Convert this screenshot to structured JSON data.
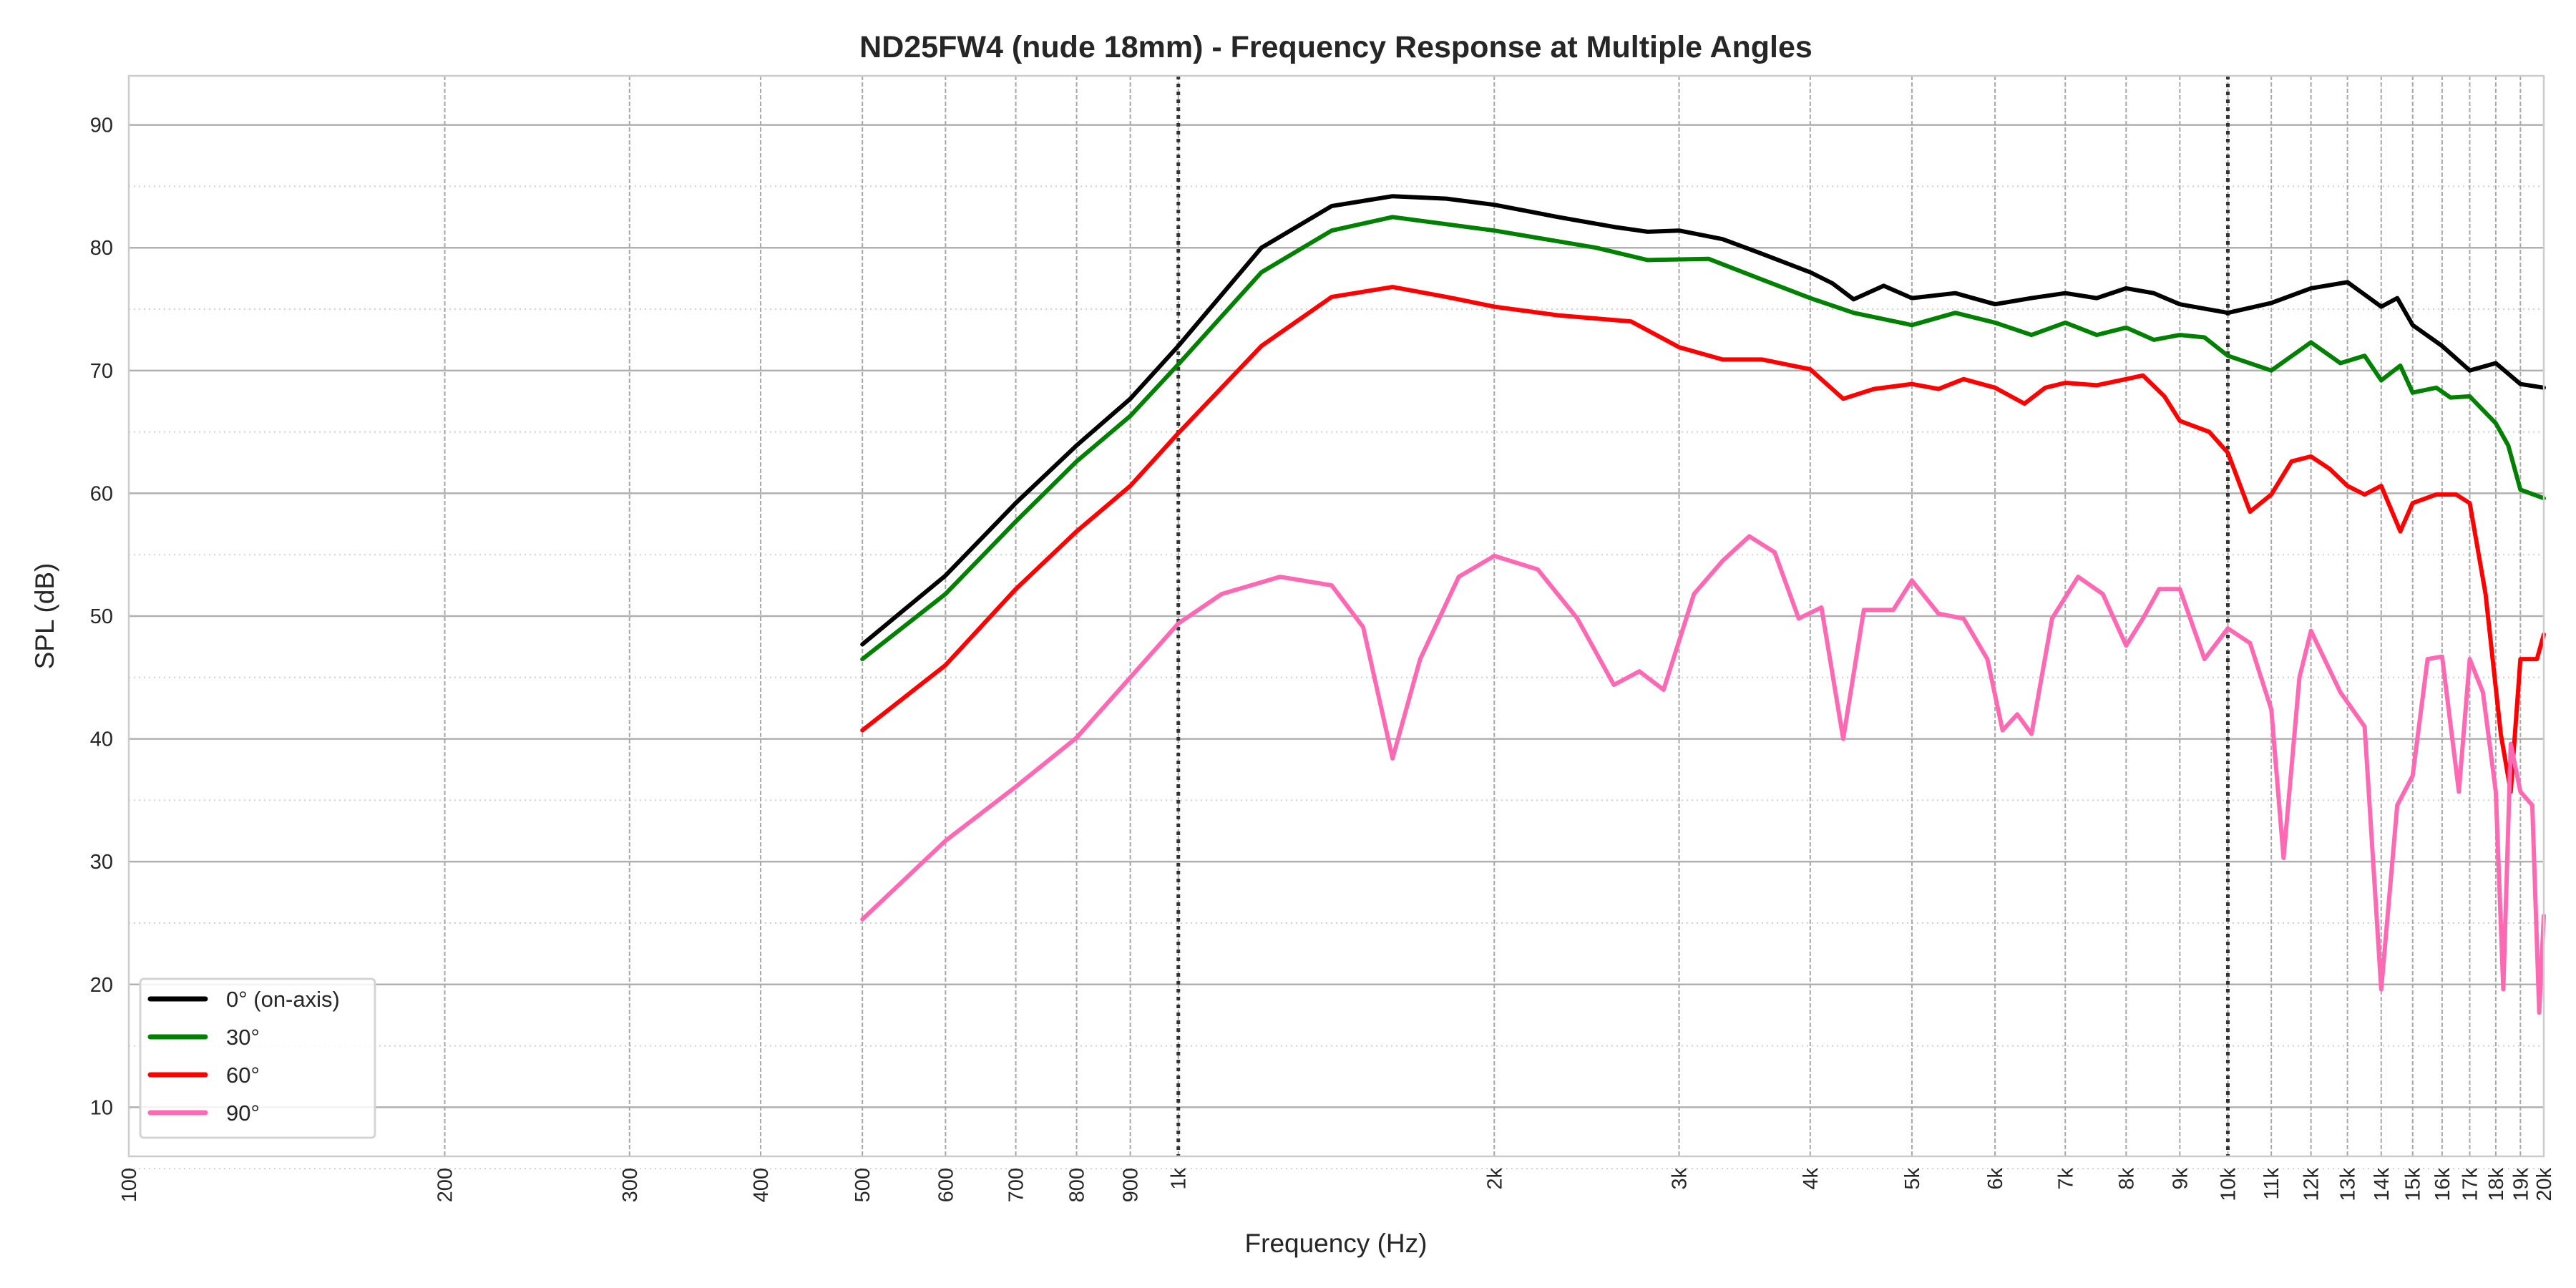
{
  "chart_data": {
    "type": "line",
    "title": "ND25FW4 (nude 18mm) - Frequency Response at Multiple Angles",
    "xlabel": "Frequency (Hz)",
    "ylabel": "SPL (dB)",
    "xscale": "log",
    "xlim": [
      100,
      20000
    ],
    "ylim": [
      6,
      94
    ],
    "grid": true,
    "legend_position": "bottom-left",
    "yticks": [
      10,
      20,
      30,
      40,
      50,
      60,
      70,
      80,
      90
    ],
    "xticks": [
      {
        "v": 100,
        "label": "100"
      },
      {
        "v": 200,
        "label": "200"
      },
      {
        "v": 300,
        "label": "300"
      },
      {
        "v": 400,
        "label": "400"
      },
      {
        "v": 500,
        "label": "500"
      },
      {
        "v": 600,
        "label": "600"
      },
      {
        "v": 700,
        "label": "700"
      },
      {
        "v": 800,
        "label": "800"
      },
      {
        "v": 900,
        "label": "900"
      },
      {
        "v": 1000,
        "label": "1k"
      },
      {
        "v": 2000,
        "label": "2k"
      },
      {
        "v": 3000,
        "label": "3k"
      },
      {
        "v": 4000,
        "label": "4k"
      },
      {
        "v": 5000,
        "label": "5k"
      },
      {
        "v": 6000,
        "label": "6k"
      },
      {
        "v": 7000,
        "label": "7k"
      },
      {
        "v": 8000,
        "label": "8k"
      },
      {
        "v": 9000,
        "label": "9k"
      },
      {
        "v": 10000,
        "label": "10k"
      },
      {
        "v": 11000,
        "label": "11k"
      },
      {
        "v": 12000,
        "label": "12k"
      },
      {
        "v": 13000,
        "label": "13k"
      },
      {
        "v": 14000,
        "label": "14k"
      },
      {
        "v": 15000,
        "label": "15k"
      },
      {
        "v": 16000,
        "label": "16k"
      },
      {
        "v": 17000,
        "label": "17k"
      },
      {
        "v": 18000,
        "label": "18k"
      },
      {
        "v": 19000,
        "label": "19k"
      },
      {
        "v": 20000,
        "label": "20k"
      }
    ],
    "reference_lines_hz": [
      1000,
      10000
    ],
    "series": [
      {
        "name": "0° (on-axis)",
        "color": "#000000",
        "x": [
          500,
          600,
          700,
          800,
          900,
          1000,
          1200,
          1400,
          1600,
          1800,
          2000,
          2300,
          2600,
          2800,
          3000,
          3300,
          3600,
          4000,
          4200,
          4400,
          4700,
          5000,
          5500,
          6000,
          6500,
          7000,
          7500,
          8000,
          8500,
          9000,
          10000,
          11000,
          12000,
          13000,
          14000,
          14500,
          15000,
          16000,
          17000,
          18000,
          19000,
          20000
        ],
        "y": [
          47.7,
          53.3,
          59.2,
          63.9,
          67.7,
          72,
          80,
          83.4,
          84.2,
          84,
          83.5,
          82.5,
          81.7,
          81.3,
          81.4,
          80.7,
          79.5,
          78,
          77.1,
          75.8,
          76.9,
          75.9,
          76.3,
          75.4,
          75.9,
          76.3,
          75.9,
          76.7,
          76.3,
          75.4,
          74.7,
          75.5,
          76.7,
          77.2,
          75.2,
          75.9,
          73.7,
          72,
          70,
          70.6,
          68.9,
          68.6
        ]
      },
      {
        "name": "30°",
        "color": "#008000",
        "x": [
          500,
          600,
          700,
          800,
          900,
          1000,
          1200,
          1400,
          1600,
          2000,
          2500,
          2800,
          3200,
          3600,
          4000,
          4400,
          5000,
          5500,
          6000,
          6500,
          7000,
          7500,
          8000,
          8500,
          9000,
          9500,
          10000,
          11000,
          12000,
          12800,
          13500,
          14000,
          14600,
          15000,
          15800,
          16300,
          17000,
          18000,
          18500,
          19000,
          20000
        ],
        "y": [
          46.5,
          51.8,
          57.7,
          62.6,
          66.3,
          70.5,
          78,
          81.4,
          82.5,
          81.4,
          80,
          79,
          79.1,
          77.4,
          75.9,
          74.7,
          73.7,
          74.7,
          73.9,
          72.9,
          73.9,
          72.9,
          73.5,
          72.5,
          72.9,
          72.7,
          71.2,
          70,
          72.3,
          70.6,
          71.2,
          69.2,
          70.4,
          68.2,
          68.6,
          67.8,
          67.9,
          65.7,
          63.9,
          60.3,
          59.6
        ]
      },
      {
        "name": "60°",
        "color": "#ff0000",
        "x": [
          500,
          600,
          700,
          800,
          900,
          1000,
          1200,
          1400,
          1600,
          1800,
          2000,
          2300,
          2700,
          3000,
          3300,
          3600,
          4000,
          4300,
          4600,
          5000,
          5300,
          5600,
          6000,
          6400,
          6700,
          7000,
          7500,
          8000,
          8300,
          8700,
          9000,
          9600,
          10000,
          10500,
          11000,
          11500,
          12000,
          12500,
          13000,
          13500,
          14000,
          14600,
          15000,
          15800,
          16500,
          17000,
          17600,
          18200,
          18600,
          19000,
          19700,
          20000
        ],
        "y": [
          40.7,
          46,
          52.2,
          56.9,
          60.6,
          64.9,
          72,
          76,
          76.8,
          76,
          75.2,
          74.5,
          74,
          71.9,
          70.9,
          70.9,
          70.1,
          67.7,
          68.5,
          68.9,
          68.5,
          69.3,
          68.6,
          67.3,
          68.6,
          69,
          68.8,
          69.3,
          69.6,
          67.9,
          65.9,
          65,
          63.3,
          58.5,
          59.9,
          62.6,
          63,
          62,
          60.6,
          59.9,
          60.6,
          56.9,
          59.2,
          59.9,
          59.9,
          59.2,
          51.8,
          40.4,
          35.7,
          46.5,
          46.5,
          48.5
        ]
      },
      {
        "name": "90°",
        "color": "#ff69b4",
        "x": [
          500,
          600,
          700,
          800,
          900,
          1000,
          1100,
          1250,
          1400,
          1500,
          1600,
          1700,
          1850,
          2000,
          2200,
          2400,
          2600,
          2750,
          2900,
          3100,
          3300,
          3500,
          3700,
          3900,
          4100,
          4300,
          4500,
          4800,
          5000,
          5300,
          5600,
          5900,
          6100,
          6300,
          6500,
          6800,
          7200,
          7600,
          8000,
          8300,
          8600,
          9000,
          9500,
          10000,
          10500,
          11000,
          11300,
          11700,
          12000,
          12800,
          13500,
          14000,
          14500,
          15000,
          15500,
          16000,
          16600,
          17000,
          17500,
          18000,
          18300,
          18600,
          19000,
          19500,
          19800,
          20000
        ],
        "y": [
          25.3,
          31.7,
          36.1,
          40.1,
          45,
          49.4,
          51.8,
          53.2,
          52.5,
          49.1,
          38.4,
          46.5,
          53.2,
          54.9,
          53.8,
          49.8,
          44.4,
          45.5,
          44,
          51.8,
          54.5,
          56.5,
          55.2,
          49.8,
          50.7,
          40,
          50.5,
          50.5,
          52.9,
          50.2,
          49.8,
          46.5,
          40.7,
          42,
          40.4,
          49.8,
          53.2,
          51.8,
          47.6,
          49.8,
          52.2,
          52.2,
          46.5,
          49,
          47.8,
          42.4,
          30.3,
          45,
          48.8,
          43.8,
          41,
          19.6,
          34.6,
          37,
          46.5,
          46.7,
          35.7,
          46.5,
          43.8,
          35.7,
          19.6,
          39.6,
          35.7,
          34.6,
          17.7,
          25.6
        ]
      }
    ]
  }
}
